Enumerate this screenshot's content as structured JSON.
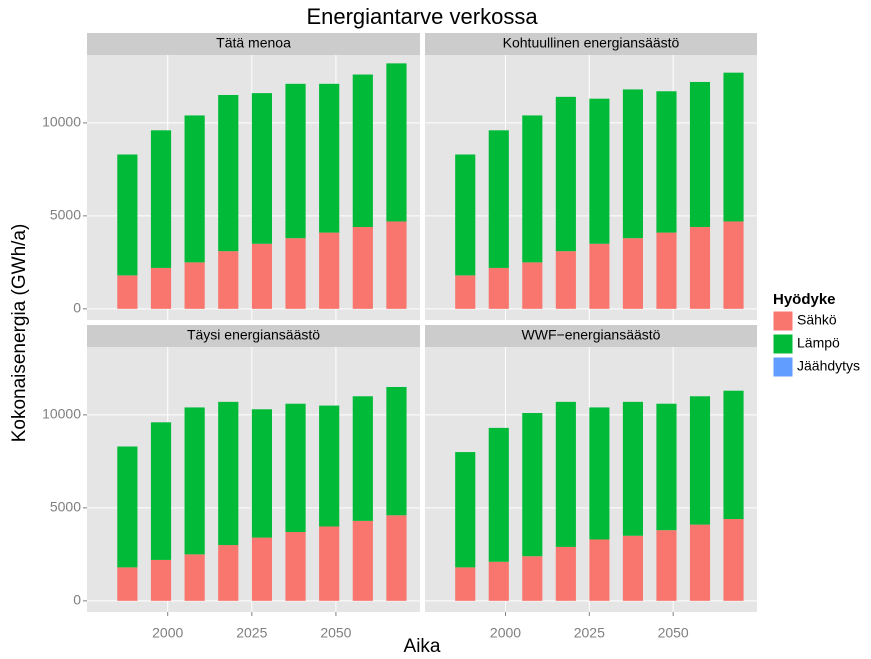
{
  "chart_data": {
    "type": "bar",
    "stacked": true,
    "title": "Energiantarve verkossa",
    "x_label": "Aika",
    "y_label": "Kokonaisenergia (GWh/a)",
    "legend_title": "Hyödyke",
    "legend_position": "right",
    "grid": true,
    "x": [
      1988,
      1998,
      2008,
      2018,
      2028,
      2038,
      2048,
      2058,
      2068
    ],
    "xlim": [
      1976,
      2075
    ],
    "xticks": [
      2000,
      2025,
      2050
    ],
    "ylim": [
      -600,
      13650
    ],
    "yticks": [
      0,
      5000,
      10000
    ],
    "series": [
      {
        "name": "Sähkö",
        "color": "#F8766D"
      },
      {
        "name": "Lämpö",
        "color": "#00BA38"
      },
      {
        "name": "Jäähdytys",
        "color": "#619CFF"
      }
    ],
    "panels": [
      {
        "title": "Tätä menoa",
        "series": [
          {
            "values": [
              1800,
              2200,
              2500,
              3100,
              3500,
              3800,
              4100,
              4400,
              4700
            ]
          },
          {
            "values": [
              6500,
              7400,
              7900,
              8400,
              8100,
              8300,
              8000,
              8200,
              8500
            ]
          },
          {
            "values": [
              0,
              0,
              0,
              0,
              0,
              0,
              0,
              0,
              0
            ]
          }
        ]
      },
      {
        "title": "Kohtuullinen energiansäästö",
        "series": [
          {
            "values": [
              1800,
              2200,
              2500,
              3100,
              3500,
              3800,
              4100,
              4400,
              4700
            ]
          },
          {
            "values": [
              6500,
              7400,
              7900,
              8300,
              7800,
              8000,
              7600,
              7800,
              8000
            ]
          },
          {
            "values": [
              0,
              0,
              0,
              0,
              0,
              0,
              0,
              0,
              0
            ]
          }
        ]
      },
      {
        "title": "Täysi energiansäästö",
        "series": [
          {
            "values": [
              1800,
              2200,
              2500,
              3000,
              3400,
              3700,
              4000,
              4300,
              4600
            ]
          },
          {
            "values": [
              6500,
              7400,
              7900,
              7700,
              6900,
              6900,
              6500,
              6700,
              6900
            ]
          },
          {
            "values": [
              0,
              0,
              0,
              0,
              0,
              0,
              0,
              0,
              0
            ]
          }
        ]
      },
      {
        "title": "WWF−energiansäästö",
        "series": [
          {
            "values": [
              1800,
              2100,
              2400,
              2900,
              3300,
              3500,
              3800,
              4100,
              4400
            ]
          },
          {
            "values": [
              6200,
              7200,
              7700,
              7800,
              7100,
              7200,
              6800,
              6900,
              6900
            ]
          },
          {
            "values": [
              0,
              0,
              0,
              0,
              0,
              0,
              0,
              0,
              0
            ]
          }
        ]
      }
    ]
  }
}
